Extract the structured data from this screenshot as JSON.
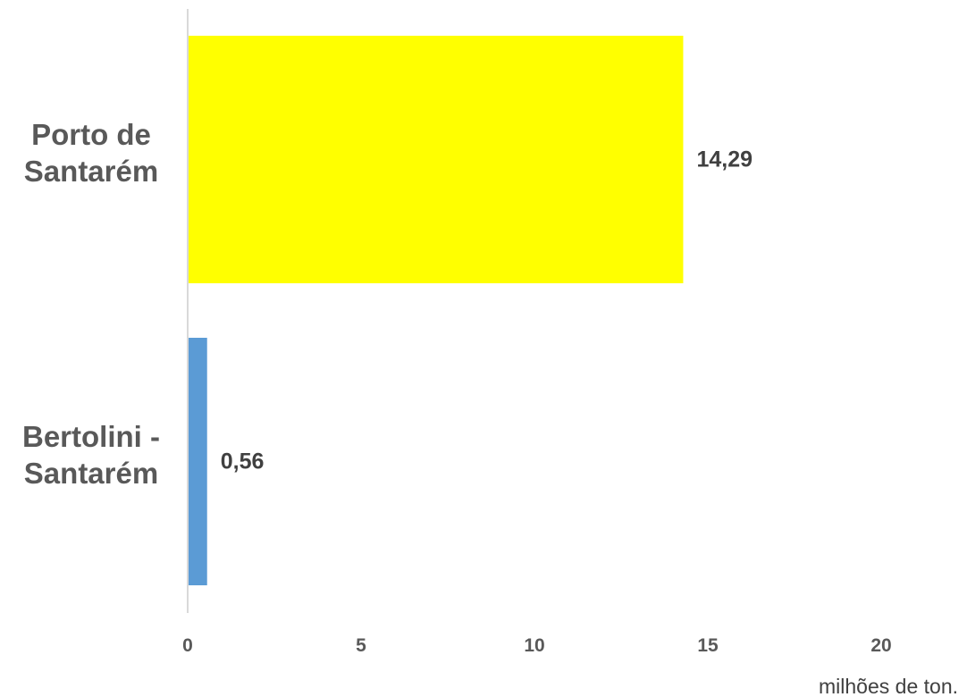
{
  "chart_data": {
    "type": "bar",
    "orientation": "horizontal",
    "categories": [
      "Porto de Santarém",
      "Bertolini - Santarém"
    ],
    "category_lines": [
      [
        "Porto de",
        "Santarém"
      ],
      [
        "Bertolini -",
        "Santarém"
      ]
    ],
    "values": [
      14.29,
      0.56
    ],
    "data_labels": [
      "14,29",
      "0,56"
    ],
    "bar_colors": [
      "#FFFF00",
      "#5B9BD5"
    ],
    "xlim": [
      0,
      20
    ],
    "xticks": [
      0,
      5,
      10,
      15,
      20
    ],
    "xlabel": "milhões de ton.",
    "grid": false,
    "legend": "none"
  }
}
